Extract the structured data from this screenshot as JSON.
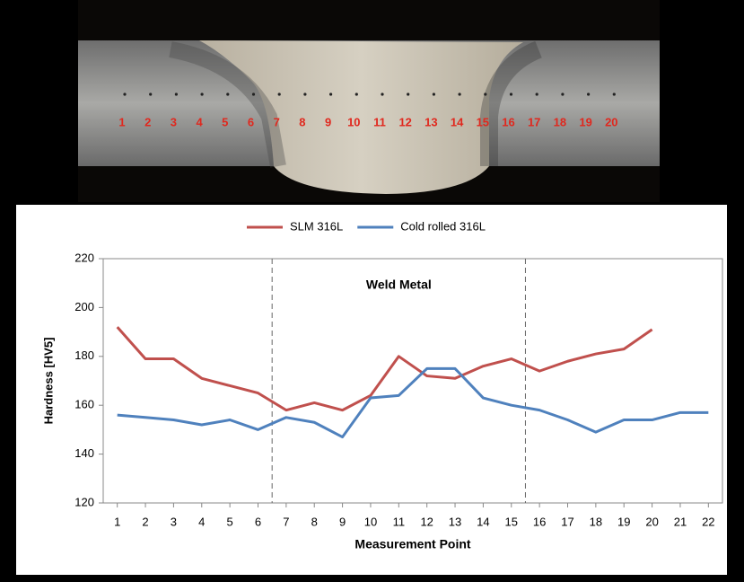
{
  "micrograph": {
    "point_labels": [
      "1",
      "2",
      "3",
      "4",
      "5",
      "6",
      "7",
      "8",
      "9",
      "10",
      "11",
      "12",
      "13",
      "14",
      "15",
      "16",
      "17",
      "18",
      "19",
      "20"
    ]
  },
  "chart_data": {
    "type": "line",
    "x": [
      1,
      2,
      3,
      4,
      5,
      6,
      7,
      8,
      9,
      10,
      11,
      12,
      13,
      14,
      15,
      16,
      17,
      18,
      19,
      20,
      21,
      22
    ],
    "xlim": [
      0.5,
      22.5
    ],
    "xticks": [
      1,
      2,
      3,
      4,
      5,
      6,
      7,
      8,
      9,
      10,
      11,
      12,
      13,
      14,
      15,
      16,
      17,
      18,
      19,
      20,
      21,
      22
    ],
    "ylim": [
      120,
      220
    ],
    "yticks": [
      120,
      140,
      160,
      180,
      200,
      220
    ],
    "x_label": "Measurement Point",
    "y_label": "Hardness [HV5]",
    "grid": false,
    "legend": "top",
    "regions": [
      {
        "label": "Weld Metal",
        "from": 6.5,
        "to": 15.5
      }
    ],
    "series": [
      {
        "name": "SLM 316L",
        "color": "#c0504d",
        "values": [
          192,
          179,
          179,
          171,
          168,
          165,
          158,
          161,
          158,
          164,
          180,
          172,
          171,
          176,
          179,
          174,
          178,
          181,
          183,
          191,
          null,
          null
        ]
      },
      {
        "name": "Cold rolled 316L",
        "color": "#4f81bd",
        "values": [
          156,
          155,
          154,
          152,
          154,
          150,
          155,
          153,
          147,
          163,
          164,
          175,
          175,
          163,
          160,
          158,
          154,
          149,
          154,
          154,
          157,
          157
        ]
      }
    ]
  }
}
